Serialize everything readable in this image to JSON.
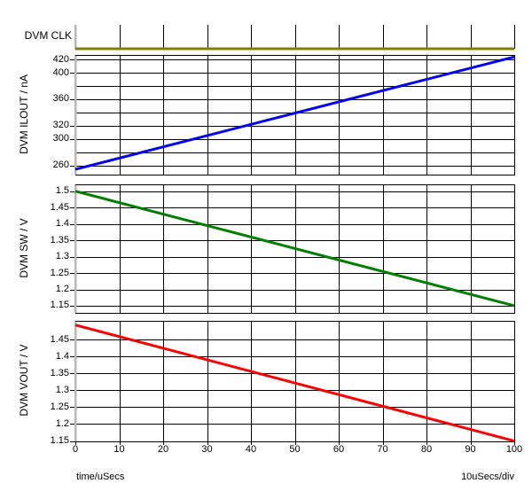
{
  "x_axis": {
    "label": "time/uSecs",
    "scale_label": "10uSecs/div",
    "ticks": [
      0,
      10,
      20,
      30,
      40,
      50,
      60,
      70,
      80,
      90,
      100
    ],
    "tick_labels": [
      "0",
      "10",
      "20",
      "30",
      "40",
      "50",
      "60",
      "70",
      "80",
      "90",
      "100"
    ],
    "xlim": [
      0,
      100
    ]
  },
  "colors": {
    "clk": "#808000",
    "ilout": "#0000ff",
    "sw": "#008000",
    "vout": "#ff0000",
    "grid": "#000000",
    "axis_bar": "#b8b8b8",
    "text": "#000000",
    "background": "#ffffff"
  },
  "chart_data": [
    {
      "id": "clk",
      "type": "line",
      "title": "DVM CLK",
      "color": "#808000",
      "x": [
        0,
        100
      ],
      "y": [
        0,
        0
      ],
      "ylim": [
        0,
        1
      ],
      "grid": [],
      "yticks": [],
      "border": false
    },
    {
      "id": "ilout",
      "type": "line",
      "ylabel": "DVM ILOUT / nA",
      "color": "#0000ff",
      "x": [
        0,
        100
      ],
      "y": [
        254,
        424
      ],
      "ylim": [
        246.1,
        426.9
      ],
      "grid": [
        260,
        280,
        300,
        320,
        340,
        360,
        380,
        400,
        420
      ],
      "yticks": [
        {
          "v": 260,
          "label": "260"
        },
        {
          "v": 300,
          "label": "300"
        },
        {
          "v": 320,
          "label": "320"
        },
        {
          "v": 360,
          "label": "360"
        },
        {
          "v": 400,
          "label": "400"
        },
        {
          "v": 420,
          "label": "420"
        }
      ],
      "border": true
    },
    {
      "id": "sw",
      "type": "line",
      "ylabel": "DVM SW / V",
      "color": "#008000",
      "x": [
        0,
        100
      ],
      "y": [
        1.5,
        1.15
      ],
      "ylim": [
        1.1283,
        1.5209
      ],
      "grid": [
        1.15,
        1.2,
        1.25,
        1.3,
        1.35,
        1.4,
        1.45,
        1.5
      ],
      "yticks": [
        {
          "v": 1.5,
          "label": "1.5"
        },
        {
          "v": 1.45,
          "label": "1.45"
        },
        {
          "v": 1.4,
          "label": "1.4"
        },
        {
          "v": 1.35,
          "label": "1.35"
        },
        {
          "v": 1.3,
          "label": "1.3"
        },
        {
          "v": 1.25,
          "label": "1.25"
        },
        {
          "v": 1.2,
          "label": "1.2"
        },
        {
          "v": 1.15,
          "label": "1.15"
        }
      ],
      "border": true
    },
    {
      "id": "vout",
      "type": "line",
      "ylabel": "DVM VOUT / V",
      "color": "#ff0000",
      "x": [
        0,
        100
      ],
      "y": [
        1.493,
        1.15
      ],
      "ylim": [
        1.1488,
        1.5053
      ],
      "grid": [
        1.15,
        1.2,
        1.25,
        1.3,
        1.35,
        1.4,
        1.45
      ],
      "yticks": [
        {
          "v": 1.45,
          "label": "1.45"
        },
        {
          "v": 1.4,
          "label": "1.4"
        },
        {
          "v": 1.35,
          "label": "1.35"
        },
        {
          "v": 1.3,
          "label": "1.3"
        },
        {
          "v": 1.25,
          "label": "1.25"
        },
        {
          "v": 1.2,
          "label": "1.2"
        },
        {
          "v": 1.15,
          "label": "1.15"
        }
      ],
      "border": true
    }
  ]
}
